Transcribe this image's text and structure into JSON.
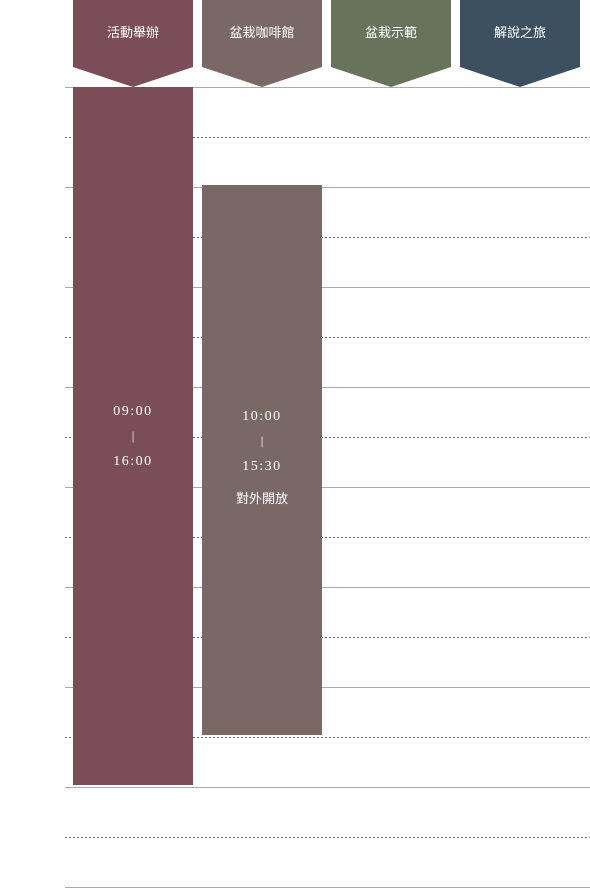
{
  "columns": [
    "活動舉辦",
    "盆栽咖啡館",
    "盆栽示範",
    "解說之旅"
  ],
  "blocks": [
    {
      "start": "09:00",
      "separator": "|",
      "end": "16:00"
    },
    {
      "start": "10:00",
      "separator": "|",
      "end": "15:30",
      "note": "對外開放"
    }
  ]
}
